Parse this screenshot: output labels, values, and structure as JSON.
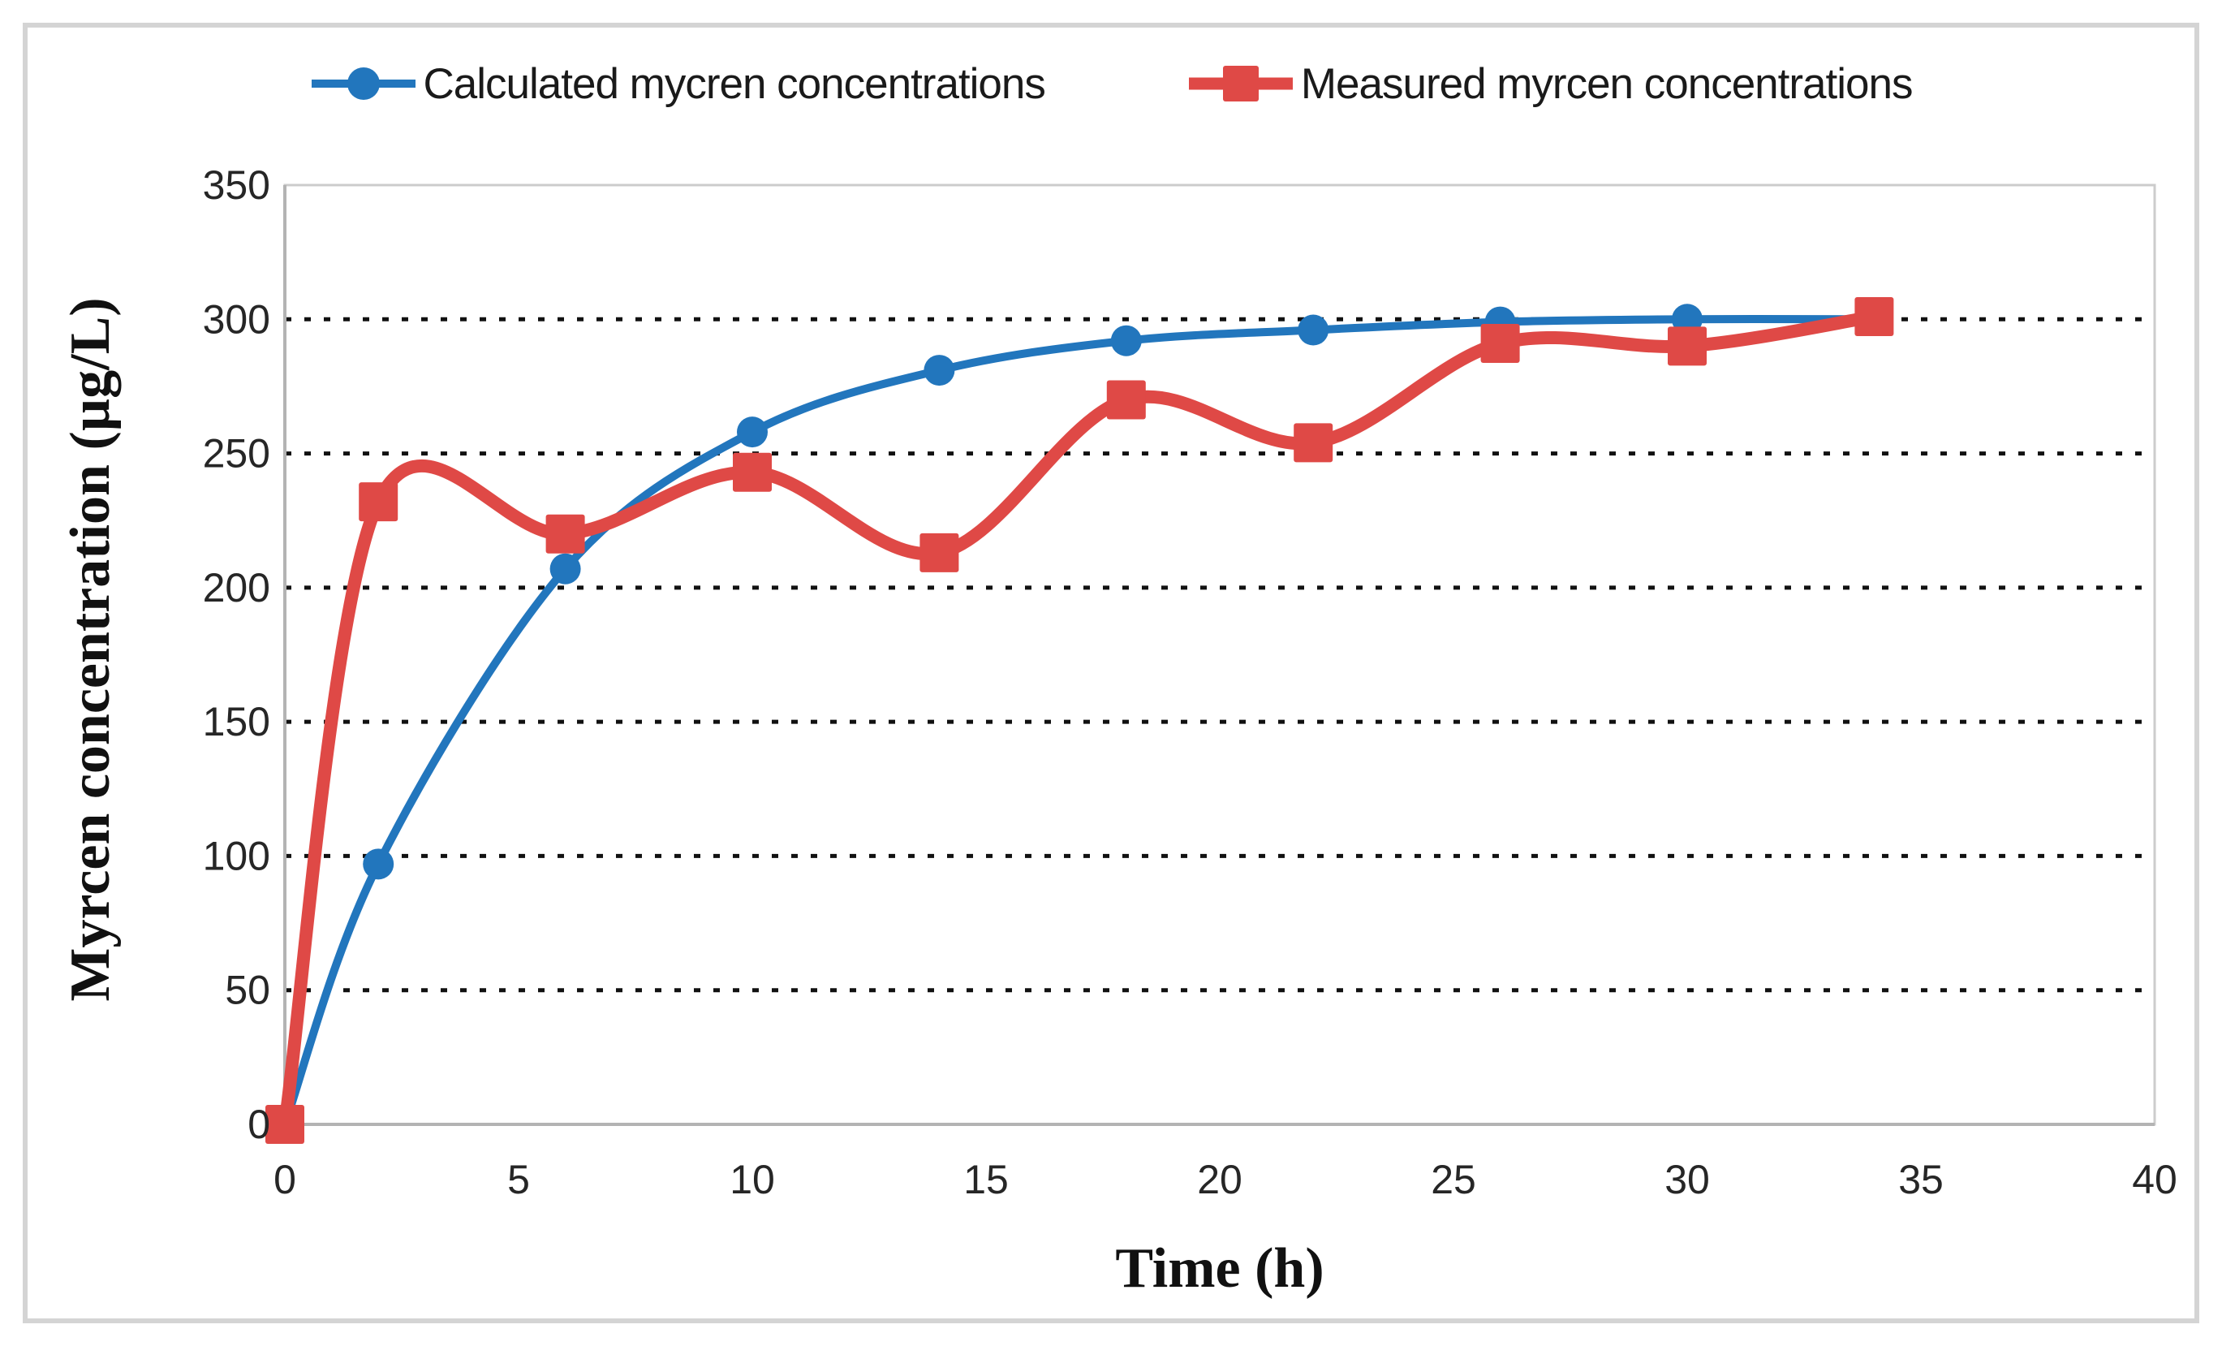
{
  "chart_data": {
    "type": "line",
    "title": "",
    "xlabel": "Time (h)",
    "ylabel": "Myrcen concentration (µg/L)",
    "xlim": [
      0,
      40
    ],
    "ylim": [
      0,
      350
    ],
    "x_ticks": [
      0,
      5,
      10,
      15,
      20,
      25,
      30,
      35,
      40
    ],
    "y_ticks": [
      0,
      50,
      100,
      150,
      200,
      250,
      300,
      350
    ],
    "grid": "horizontal-dotted-black",
    "legend_position": "top-center",
    "x": [
      0,
      2,
      6,
      10,
      14,
      18,
      22,
      26,
      30,
      34
    ],
    "series": [
      {
        "name": "Calculated mycren concentrations",
        "color": "#2276BD",
        "marker": "circle",
        "line_width": 10,
        "values": [
          0,
          97,
          207,
          258,
          281,
          292,
          296,
          299,
          300,
          300
        ]
      },
      {
        "name": "Measured myrcen concentrations",
        "color": "#DF4946",
        "marker": "square",
        "line_width": 16,
        "values": [
          0,
          232,
          220,
          243,
          213,
          270,
          254,
          291,
          290,
          301
        ]
      }
    ]
  }
}
